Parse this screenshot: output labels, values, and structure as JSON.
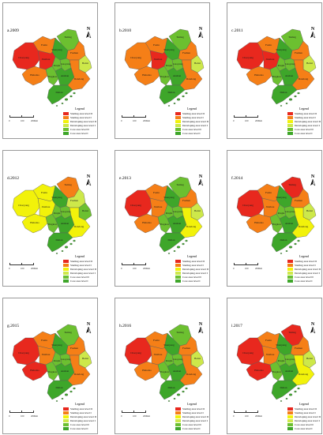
{
  "colors": {
    "starting_2": "#e8281e",
    "starting_1": "#f57f17",
    "developing_2": "#f2f20a",
    "developing_1": "#cde84a",
    "core_2": "#6cc030",
    "core_1": "#3ea62a"
  },
  "legend": {
    "title": "Legend",
    "items": [
      {
        "key": "starting_2",
        "label": "Starting area level II"
      },
      {
        "key": "starting_1",
        "label": "Starting area level I"
      },
      {
        "key": "developing_2",
        "label": "Developing area level II"
      },
      {
        "key": "developing_1",
        "label": "Developing area level I"
      },
      {
        "key": "core_2",
        "label": "Core area level II"
      },
      {
        "key": "core_1",
        "label": "Core area level I"
      }
    ]
  },
  "north_label": "N",
  "scale": {
    "labels": [
      "0",
      "100",
      "200Km"
    ]
  },
  "cities": [
    "Tieling",
    "Fuxin",
    "Shenyang",
    "Fushun",
    "Chaoyang",
    "Jinzhou",
    "Benxi",
    "Panjin",
    "Liaoyang",
    "Huludao",
    "Yingkou",
    "Anshan",
    "Dandong",
    "Dalian"
  ],
  "panels": [
    {
      "title": "a.2009",
      "classes": {
        "Tieling": "core_2",
        "Fuxin": "starting_1",
        "Shenyang": "core_1",
        "Fushun": "starting_1",
        "Chaoyang": "starting_2",
        "Jinzhou": "starting_2",
        "Benxi": "developing_1",
        "Panjin": "core_2",
        "Liaoyang": "core_2",
        "Huludao": "starting_1",
        "Yingkou": "core_2",
        "Anshan": "core_1",
        "Dandong": "starting_1",
        "Dalian": "core_1"
      }
    },
    {
      "title": "b.2010",
      "classes": {
        "Tieling": "core_2",
        "Fuxin": "starting_1",
        "Shenyang": "core_1",
        "Fushun": "starting_1",
        "Chaoyang": "starting_1",
        "Jinzhou": "starting_2",
        "Benxi": "developing_1",
        "Panjin": "core_2",
        "Liaoyang": "core_2",
        "Huludao": "starting_1",
        "Yingkou": "core_2",
        "Anshan": "core_1",
        "Dandong": "starting_1",
        "Dalian": "core_1"
      }
    },
    {
      "title": "c.2011",
      "classes": {
        "Tieling": "core_2",
        "Fuxin": "starting_1",
        "Shenyang": "core_1",
        "Fushun": "starting_1",
        "Chaoyang": "starting_2",
        "Jinzhou": "starting_2",
        "Benxi": "developing_1",
        "Panjin": "core_2",
        "Liaoyang": "core_2",
        "Huludao": "starting_1",
        "Yingkou": "core_2",
        "Anshan": "core_1",
        "Dandong": "starting_1",
        "Dalian": "core_1"
      }
    },
    {
      "title": "d.2012",
      "classes": {
        "Tieling": "starting_1",
        "Fuxin": "developing_2",
        "Shenyang": "core_1",
        "Fushun": "developing_1",
        "Chaoyang": "developing_2",
        "Jinzhou": "developing_2",
        "Benxi": "core_2",
        "Panjin": "core_2",
        "Liaoyang": "core_2",
        "Huludao": "developing_2",
        "Yingkou": "core_2",
        "Anshan": "core_1",
        "Dandong": "developing_2",
        "Dalian": "core_1"
      }
    },
    {
      "title": "e.2013",
      "classes": {
        "Tieling": "core_2",
        "Fuxin": "starting_1",
        "Shenyang": "core_1",
        "Fushun": "starting_1",
        "Chaoyang": "starting_2",
        "Jinzhou": "starting_1",
        "Benxi": "developing_1",
        "Panjin": "core_2",
        "Liaoyang": "core_2",
        "Huludao": "starting_1",
        "Yingkou": "core_2",
        "Anshan": "core_1",
        "Dandong": "developing_2",
        "Dalian": "core_1"
      }
    },
    {
      "title": "f.2014",
      "classes": {
        "Tieling": "starting_2",
        "Fuxin": "starting_1",
        "Shenyang": "core_1",
        "Fushun": "starting_1",
        "Chaoyang": "starting_2",
        "Jinzhou": "starting_1",
        "Benxi": "developing_1",
        "Panjin": "core_2",
        "Liaoyang": "core_2",
        "Huludao": "starting_1",
        "Yingkou": "core_2",
        "Anshan": "core_1",
        "Dandong": "developing_2",
        "Dalian": "core_1"
      }
    },
    {
      "title": "g.2015",
      "classes": {
        "Tieling": "core_2",
        "Fuxin": "starting_1",
        "Shenyang": "core_1",
        "Fushun": "starting_1",
        "Chaoyang": "starting_2",
        "Jinzhou": "starting_1",
        "Benxi": "developing_1",
        "Panjin": "core_2",
        "Liaoyang": "core_2",
        "Huludao": "starting_2",
        "Yingkou": "core_2",
        "Anshan": "core_1",
        "Dandong": "starting_1",
        "Dalian": "core_1"
      }
    },
    {
      "title": "h.2016",
      "classes": {
        "Tieling": "core_2",
        "Fuxin": "starting_1",
        "Shenyang": "core_1",
        "Fushun": "starting_1",
        "Chaoyang": "starting_2",
        "Jinzhou": "starting_1",
        "Benxi": "developing_1",
        "Panjin": "core_2",
        "Liaoyang": "core_2",
        "Huludao": "starting_1",
        "Yingkou": "core_2",
        "Anshan": "core_1",
        "Dandong": "starting_1",
        "Dalian": "core_1"
      }
    },
    {
      "title": "i.2017",
      "classes": {
        "Tieling": "starting_2",
        "Fuxin": "starting_1",
        "Shenyang": "core_1",
        "Fushun": "starting_1",
        "Chaoyang": "starting_2",
        "Jinzhou": "starting_1",
        "Benxi": "developing_1",
        "Panjin": "core_2",
        "Liaoyang": "core_2",
        "Huludao": "starting_2",
        "Yingkou": "core_2",
        "Anshan": "core_1",
        "Dandong": "developing_2",
        "Dalian": "core_1"
      }
    }
  ]
}
